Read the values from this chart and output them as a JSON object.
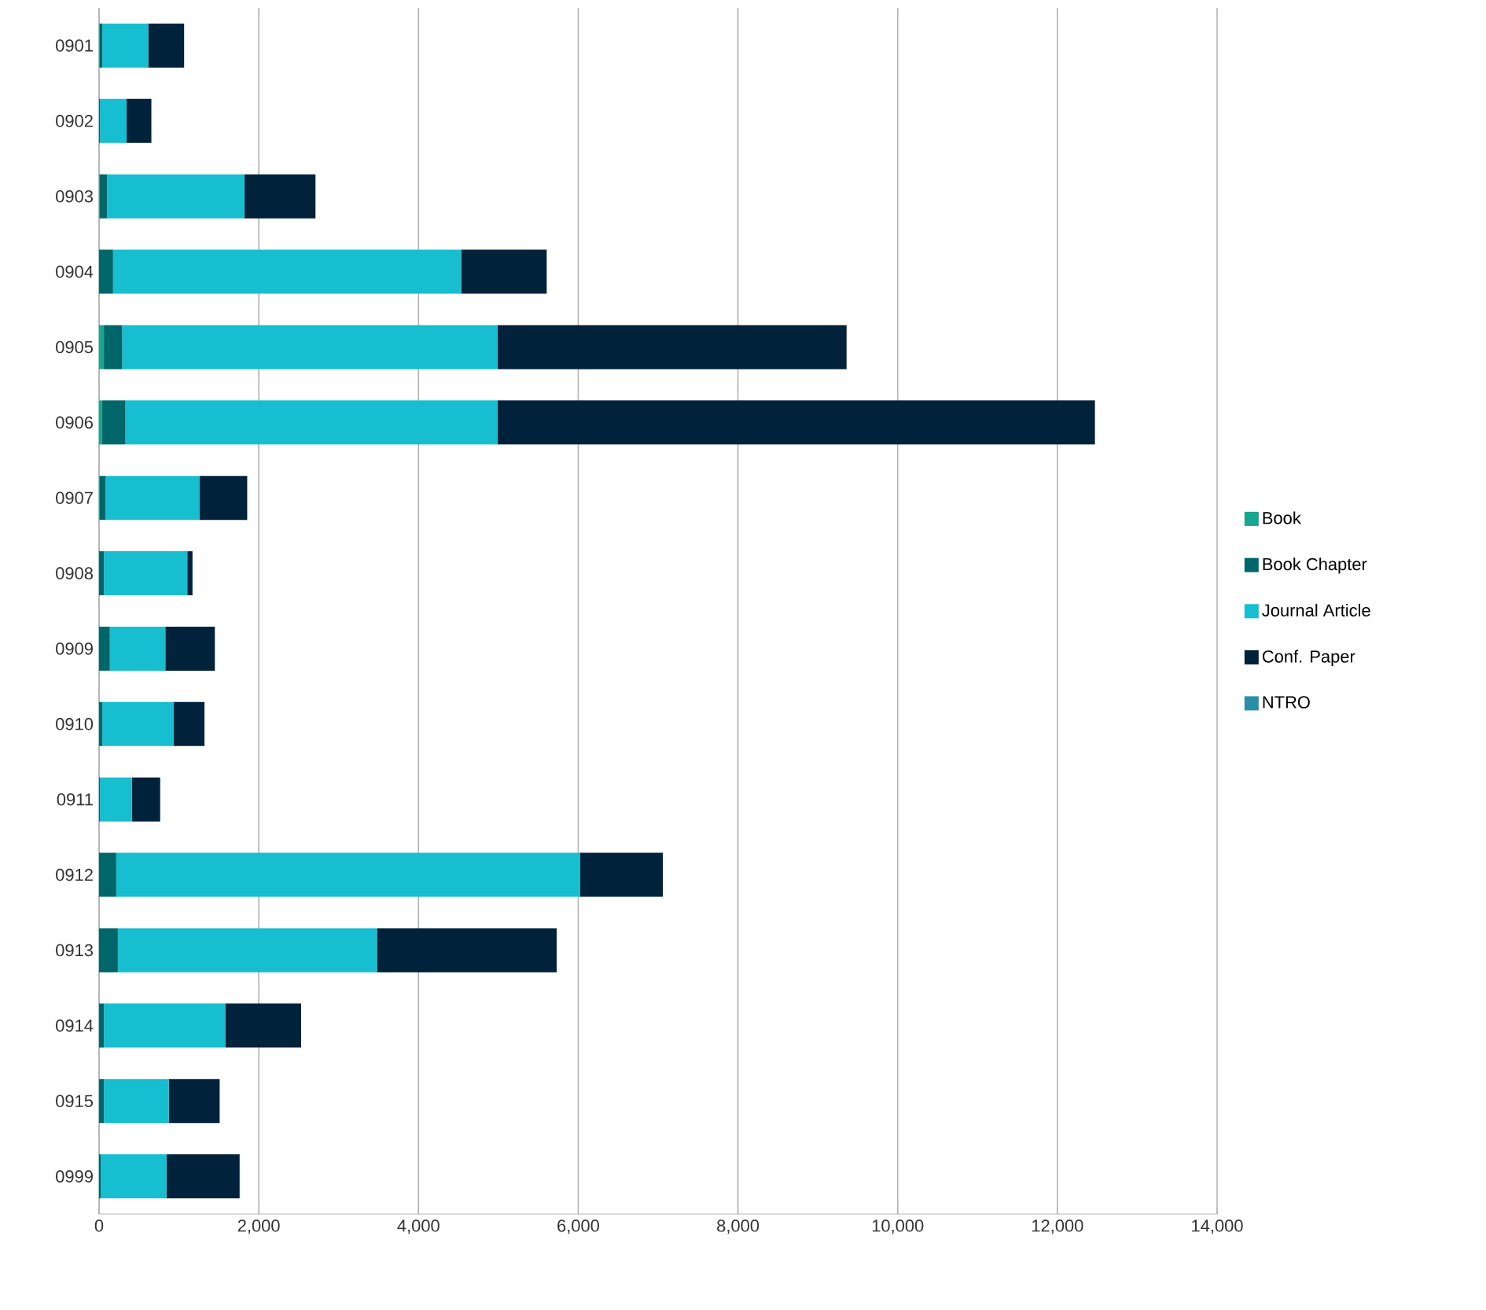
{
  "chart_data": {
    "type": "bar",
    "orientation": "horizontal",
    "stacked": true,
    "categories": [
      "0901",
      "0902",
      "0903",
      "0904",
      "0905",
      "0906",
      "0907",
      "0908",
      "0909",
      "0910",
      "0911",
      "0912",
      "0913",
      "0914",
      "0915",
      "0999"
    ],
    "series": [
      {
        "name": "Book",
        "color": "#1aa58e",
        "values": [
          10,
          0,
          5,
          0,
          60,
          40,
          10,
          0,
          0,
          0,
          0,
          0,
          0,
          0,
          0,
          0
        ]
      },
      {
        "name": "Book Chapter",
        "color": "#00666a",
        "values": [
          30,
          10,
          95,
          175,
          230,
          290,
          70,
          60,
          135,
          40,
          10,
          215,
          235,
          60,
          60,
          20
        ]
      },
      {
        "name": "Journal Article",
        "color": "#17becf",
        "values": [
          575,
          335,
          1720,
          4360,
          4700,
          4660,
          1180,
          1045,
          695,
          895,
          400,
          5805,
          3245,
          1520,
          815,
          825
        ]
      },
      {
        "name": "Conf. Paper",
        "color": "#00223a",
        "values": [
          450,
          310,
          890,
          1070,
          4370,
          7480,
          595,
          65,
          620,
          385,
          355,
          1040,
          2250,
          950,
          635,
          915
        ]
      },
      {
        "name": "NTRO",
        "color": "#2a8fa5",
        "values": [
          0,
          0,
          0,
          0,
          0,
          0,
          0,
          0,
          0,
          0,
          0,
          0,
          0,
          0,
          0,
          0
        ]
      }
    ],
    "xlim": [
      0,
      14000
    ],
    "xticks": [
      0,
      {
        "value": 2000,
        "label": "2,000"
      },
      {
        "value": 4000,
        "label": "4,000"
      },
      {
        "value": 6000,
        "label": "6,000"
      },
      {
        "value": 8000,
        "label": "8,000"
      },
      {
        "value": 10000,
        "label": "10,000"
      },
      {
        "value": 12000,
        "label": "12,000"
      },
      {
        "value": 14000,
        "label": "14,000"
      }
    ],
    "grid": "x",
    "legend": "right"
  }
}
